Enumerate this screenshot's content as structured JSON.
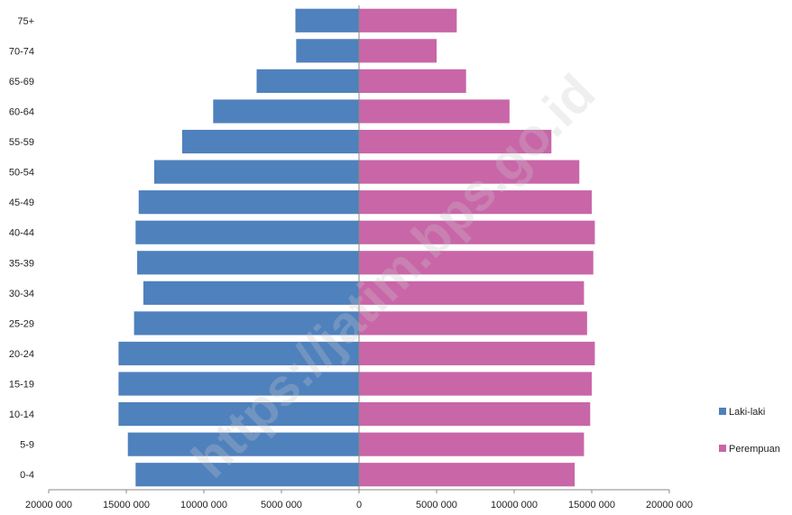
{
  "chart_data": {
    "type": "bar",
    "orientation": "horizontal",
    "categories": [
      "75+",
      "70-74",
      "65-69",
      "60-64",
      "55-59",
      "50-54",
      "45-49",
      "40-44",
      "35-39",
      "30-34",
      "25-29",
      "20-24",
      "15-19",
      "10-14",
      "5-9",
      "0-4"
    ],
    "series": [
      {
        "name": "Laki-laki",
        "color": "#4f81bd",
        "values": [
          4100000,
          4050000,
          6600000,
          9400000,
          11400000,
          13200000,
          14200000,
          14400000,
          14300000,
          13900000,
          14500000,
          15500000,
          15500000,
          15500000,
          14900000,
          14400000
        ]
      },
      {
        "name": "Perempuan",
        "color": "#c866a8",
        "values": [
          6300000,
          5000000,
          6900000,
          9700000,
          12400000,
          14200000,
          15000000,
          15200000,
          15100000,
          14500000,
          14700000,
          15200000,
          15000000,
          14900000,
          14500000,
          13900000
        ]
      }
    ],
    "xlim": [
      -20000000,
      20000000
    ],
    "x_tick_values": [
      -20000000,
      -15000000,
      -10000000,
      -5000000,
      0,
      5000000,
      10000000,
      15000000,
      20000000
    ],
    "x_tick_labels": [
      "20000 000",
      "15000 000",
      "10000 000",
      "5000 000",
      "0",
      "5000 000",
      "10000 000",
      "15000 000",
      "20000 000"
    ],
    "legend_position": "right",
    "grid": false,
    "title": "",
    "xlabel": "",
    "ylabel": ""
  },
  "watermark": "https://jatim.bps.go.id"
}
